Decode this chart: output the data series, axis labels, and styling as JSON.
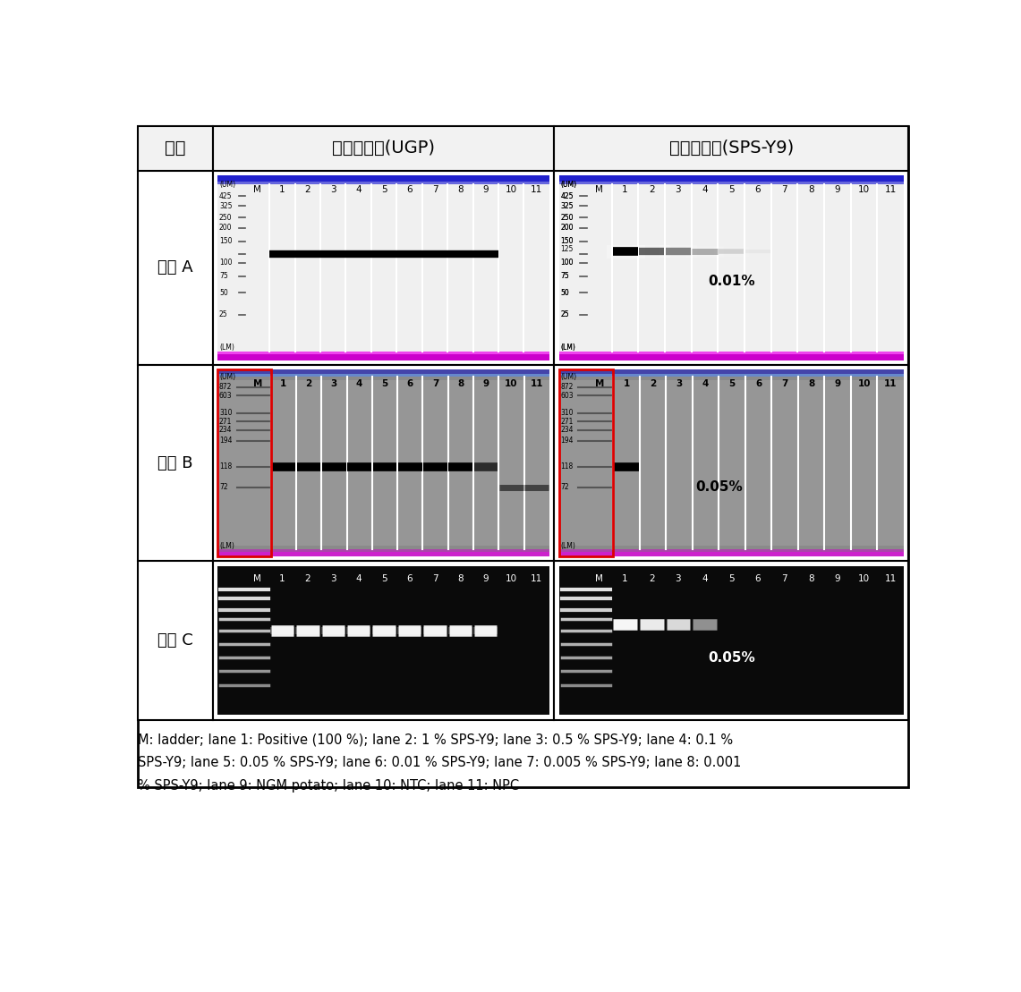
{
  "title_col1": "기관",
  "title_col2": "내재유전자(UGP)",
  "title_col3": "구조유전자(SPS-Y9)",
  "row_labels": [
    "기관 A",
    "기관 B",
    "기관 C"
  ],
  "annotation_A_right": "0.01%",
  "annotation_B_right": "0.05%",
  "annotation_C_right": "0.05%",
  "caption_line1": "M: ladder; lane 1: Positive (100 %); lane 2: 1 % SPS-Y9; lane 3: 0.5 % SPS-Y9; lane 4: 0.1 %",
  "caption_line2": "SPS-Y9; lane 5: 0.05 % SPS-Y9; lane 6: 0.01 % SPS-Y9; lane 7: 0.005 % SPS-Y9; lane 8: 0.001",
  "caption_line3": "% SPS-Y9; lane 9: NGM potato; lane 10: NTC; lane 11: NPC",
  "bg_color": "#ffffff"
}
